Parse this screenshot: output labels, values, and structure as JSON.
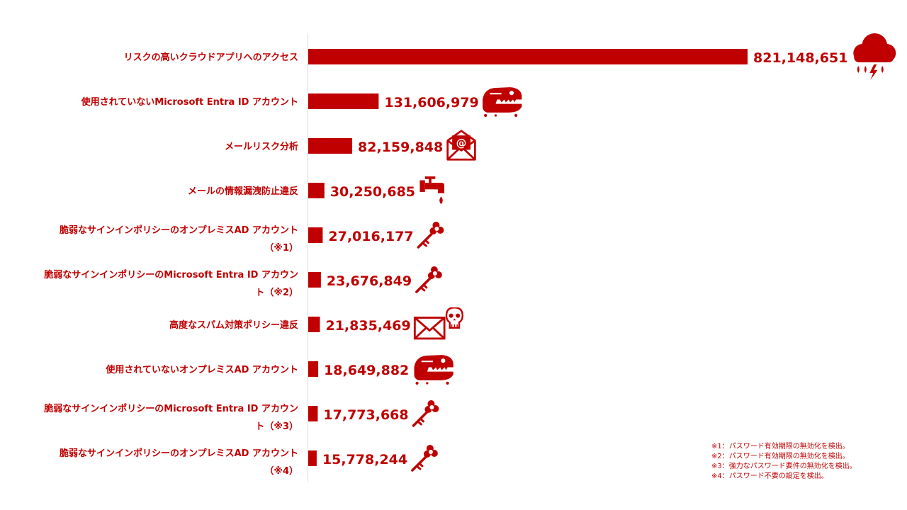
{
  "chart_data": {
    "type": "bar",
    "orientation": "horizontal",
    "title": "",
    "xlabel": "",
    "ylabel": "",
    "bar_color": "#c00000",
    "label_color": "#c00000",
    "xlim": [
      0,
      821148651
    ],
    "grid": false,
    "legend": "none",
    "categories": [
      [
        "リスクの高いクラウドアプリへのアクセス"
      ],
      [
        "使用されていないMicrosoft Entra ID アカウント"
      ],
      [
        "メールリスク分析"
      ],
      [
        "メールの情報漏洩防止違反"
      ],
      [
        "脆弱なサインインポリシーのオンプレミスAD アカウント",
        "（※1）"
      ],
      [
        "脆弱なサインインポリシーのMicrosoft Entra ID アカウン",
        "ト（※2）"
      ],
      [
        "高度なスパム対策ポリシー違反"
      ],
      [
        "使用されていないオンプレミスAD アカウント"
      ],
      [
        "脆弱なサインインポリシーのMicrosoft Entra ID アカウン",
        "ト（※3）"
      ],
      [
        "脆弱なサインインポリシーのオンプレミスAD アカウント",
        "（※4）"
      ]
    ],
    "values": [
      821148651,
      131606979,
      82159848,
      30250685,
      27016177,
      23676849,
      21835469,
      18649882,
      17773668,
      15778244
    ],
    "value_labels": [
      "821,148,651",
      "131,606,979",
      "82,159,848",
      "30,250,685",
      "27,016,177",
      "23,676,849",
      "21,835,469",
      "18,649,882",
      "17,773,668",
      "15,778,244"
    ],
    "icons": [
      "storm-cloud-icon",
      "dinosaur-skull-icon",
      "email-open-icon",
      "dripping-faucet-icon",
      "key-icon",
      "key-icon",
      "envelope-skull-icon",
      "dinosaur-skull-icon",
      "key-icon",
      "key-icon"
    ]
  },
  "footnotes": [
    "※1：パスワード有効期限の無効化を検出。",
    "※2：パスワード有効期限の無効化を検出。",
    "※3：強力なパスワード要件の無効化を検出。",
    "※4：パスワード不要の設定を検出。"
  ]
}
